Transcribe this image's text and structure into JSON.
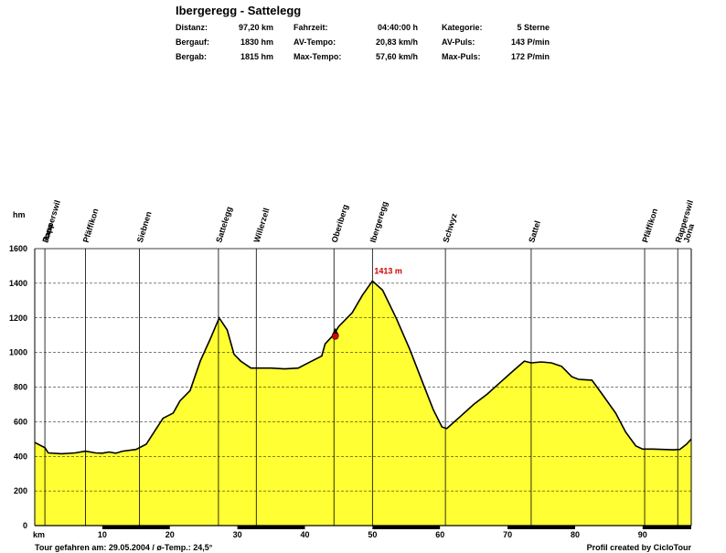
{
  "title": "Ibergeregg - Sattelegg",
  "stats": [
    {
      "label": "Distanz:",
      "value": "97,20 km"
    },
    {
      "label": "Bergauf:",
      "value": "1830 hm"
    },
    {
      "label": "Bergab:",
      "value": "1815 hm"
    },
    {
      "label": "Fahrzeit:",
      "value": "04:40:00 h"
    },
    {
      "label": "AV-Tempo:",
      "value": "20,83 km/h"
    },
    {
      "label": "Max-Tempo:",
      "value": "57,60 km/h"
    },
    {
      "label": "Kategorie:",
      "value": "5 Sterne"
    },
    {
      "label": "AV-Puls:",
      "value": "143 P/min"
    },
    {
      "label": "Max-Puls:",
      "value": "172 P/min"
    }
  ],
  "footer": {
    "left": "Tour gefahren am: 29.05.2004  /  ø-Temp.: 24,5°",
    "right": "Profil created by CicloTour"
  },
  "colors": {
    "fill": "#ffff33",
    "line": "#000000",
    "peak_label": "#cc0000",
    "grid": "#000000"
  },
  "chart_data": {
    "type": "area",
    "xlabel": "km",
    "ylabel": "hm",
    "xlim": [
      0,
      97.2
    ],
    "ylim": [
      0,
      1600
    ],
    "xticks": [
      10,
      20,
      30,
      40,
      50,
      60,
      70,
      80,
      90
    ],
    "yticks": [
      0,
      200,
      400,
      600,
      800,
      1000,
      1200,
      1400,
      1600
    ],
    "grid": true,
    "x": [
      0,
      1.5,
      2,
      4,
      6,
      7.5,
      9,
      10,
      11,
      12,
      13,
      15,
      16.5,
      17.5,
      19,
      20.5,
      21.5,
      23,
      24.5,
      26,
      27.3,
      28.5,
      29.5,
      30.5,
      32,
      33,
      35,
      37,
      39,
      41,
      42.5,
      43,
      44.2,
      45,
      47,
      48.5,
      50,
      51.5,
      53.5,
      55.5,
      57.5,
      59,
      60.3,
      61,
      63,
      65,
      67,
      69,
      71,
      72.5,
      73.5,
      75,
      76.5,
      78,
      79.5,
      80.5,
      82.5,
      84,
      86,
      87.5,
      89,
      90,
      91.5,
      93,
      94.5,
      95.5,
      96.5,
      97.2
    ],
    "values": [
      480,
      450,
      420,
      415,
      420,
      430,
      420,
      418,
      425,
      418,
      430,
      440,
      470,
      530,
      620,
      650,
      720,
      780,
      950,
      1080,
      1200,
      1130,
      990,
      950,
      910,
      910,
      910,
      905,
      910,
      950,
      980,
      1050,
      1100,
      1150,
      1230,
      1330,
      1413,
      1360,
      1200,
      1020,
      820,
      670,
      570,
      560,
      630,
      700,
      760,
      830,
      900,
      950,
      940,
      945,
      940,
      920,
      860,
      845,
      840,
      760,
      650,
      540,
      460,
      442,
      442,
      440,
      438,
      440,
      470,
      500
    ],
    "peak": {
      "x": 50,
      "value": 1413,
      "label": "1413 m"
    },
    "marker": {
      "x": 44.5,
      "value": 1110
    },
    "places": [
      {
        "name": "Jona",
        "x": 1.5,
        "line": false
      },
      {
        "name": "Rapperswil",
        "x": 1.5,
        "line": true
      },
      {
        "name": "Pfäffikon",
        "x": 7.5,
        "line": true
      },
      {
        "name": "Siebnen",
        "x": 15.5,
        "line": true
      },
      {
        "name": "Sattelegg",
        "x": 27.2,
        "line": true
      },
      {
        "name": "Willerzell",
        "x": 32.8,
        "line": true
      },
      {
        "name": "Oberiberg",
        "x": 44.3,
        "line": true
      },
      {
        "name": "Ibergeregg",
        "x": 50,
        "line": true
      },
      {
        "name": "Schwyz",
        "x": 60.8,
        "line": true
      },
      {
        "name": "Sattel",
        "x": 73.5,
        "line": true
      },
      {
        "name": "Pfäffikon",
        "x": 90.3,
        "line": true
      },
      {
        "name": "Rapperswil",
        "x": 95.2,
        "line": true
      },
      {
        "name": "Jona",
        "x": 96.4,
        "line": false
      }
    ]
  }
}
